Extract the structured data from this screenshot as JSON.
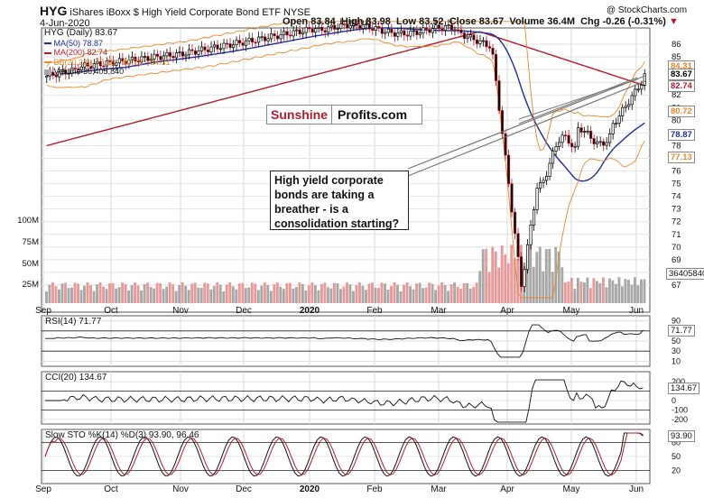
{
  "header": {
    "symbol": "HYG",
    "name": "iShares iBoxx $ High Yield Corporate Bond ETF",
    "exchange": "NYSE",
    "date": "4-Jun-2020",
    "watermark": "@ StockCharts.com",
    "open_label": "Open",
    "open": "83.84",
    "high_label": "High",
    "high": "83.98",
    "low_label": "Low",
    "low": "83.52",
    "close_label": "Close",
    "close": "83.67",
    "volume_label": "Volume",
    "volume": "36.4M",
    "chg_label": "Chg",
    "chg": "-0.26 (-0.31%)",
    "chg_arrow": "▼"
  },
  "legend": {
    "main": "HYG (Daily) 83.67",
    "ma50": "MA(50) 78.87",
    "ma200": "MA(200) 82.74",
    "bb": "BB(20,2.0) 77.13 - 80.72 - 84.31",
    "volume": "Volume 36,405,840"
  },
  "brand": {
    "part1": "Sunshine",
    "part2": "Profits.com"
  },
  "callout": {
    "text": "High yield corporate bonds are taking a breather - is a consolidation starting?"
  },
  "price_axis": {
    "ticks": [
      "86",
      "85",
      "84",
      "83",
      "82",
      "81",
      "80",
      "79",
      "78",
      "77",
      "76",
      "75",
      "74",
      "73",
      "72",
      "71",
      "70",
      "69",
      "68",
      "67"
    ],
    "labels": [
      {
        "text": "84.31",
        "value": 84.31,
        "color": "#e8872b"
      },
      {
        "text": "83.67",
        "value": 83.67,
        "color": "#000000"
      },
      {
        "text": "82.74",
        "value": 82.74,
        "color": "#b01e2c"
      },
      {
        "text": "80.72",
        "value": 80.72,
        "color": "#e8872b"
      },
      {
        "text": "78.87",
        "value": 78.87,
        "color": "#1f2f9a"
      },
      {
        "text": "77.13",
        "value": 77.13,
        "color": "#e8872b"
      }
    ],
    "volume_ticks": [
      "100M",
      "75M",
      "50M",
      "25M"
    ],
    "volume_label": "36405840"
  },
  "months": [
    "Sep",
    "Oct",
    "Nov",
    "Dec",
    "2020",
    "Feb",
    "Mar",
    "Apr",
    "May",
    "Jun"
  ],
  "rsi": {
    "label": "RSI(14) 71.77",
    "ticks": [
      "90",
      "70",
      "50",
      "30",
      "10"
    ],
    "value_box": "71.77"
  },
  "cci": {
    "label": "CCI(20) 134.67",
    "ticks": [
      "200",
      "100",
      "0",
      "-100",
      "-200"
    ],
    "value_box": "134.67"
  },
  "sto": {
    "label": "Slow STO %K(14) %D(3) 93.90, 96.46",
    "ticks": [
      "80",
      "50",
      "20"
    ],
    "value_box": "93.90"
  },
  "colors": {
    "up": "#ffffff",
    "down": "#000000",
    "ma50": "#1f2f9a",
    "ma200": "#b01e2c",
    "bb": "#e8872b",
    "vol_up": "#a8a8a8",
    "vol_down": "#e89a9a",
    "rsi_fill": "#5e8a5e",
    "cci_neg": "#8c5a5a"
  },
  "chart_data": {
    "type": "candlestick",
    "ylim": [
      66,
      87
    ],
    "x": [
      "Sep",
      "Oct",
      "Nov",
      "Dec",
      "2020",
      "Feb",
      "Mar",
      "Apr",
      "May",
      "Jun"
    ],
    "key_prices": {
      "pre_crash_high": 88.0,
      "crash_low": 66.5,
      "latest_close": 83.67,
      "ma50": 78.87,
      "ma200": 82.74
    },
    "monthly_close_estimate": [
      83.5,
      84.0,
      85.0,
      86.0,
      87.5,
      87.0,
      80.0,
      77.0,
      78.0,
      83.67
    ]
  }
}
